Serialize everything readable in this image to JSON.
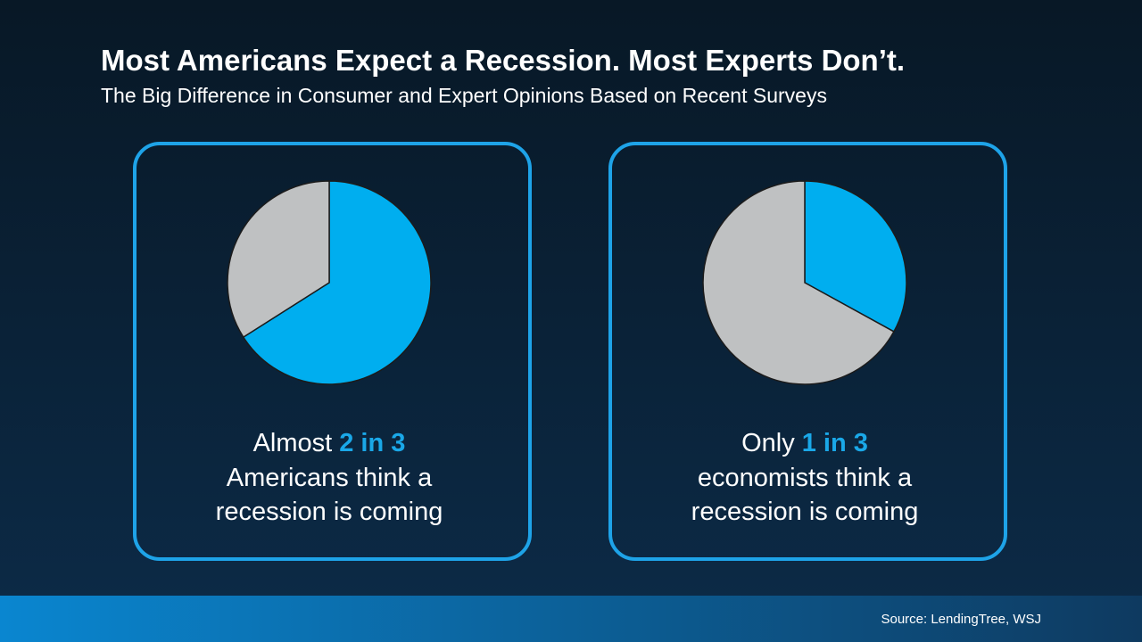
{
  "title": "Most Americans Expect a Recession. Most Experts Don’t.",
  "subtitle": "The Big Difference in Consumer and Expert Opinions Based on Recent Surveys",
  "chart_data": [
    {
      "type": "pie",
      "values": [
        66,
        34
      ],
      "colors": [
        "#00aeef",
        "#bfc1c2"
      ],
      "caption": {
        "lead": "Almost",
        "highlight": "2 in 3",
        "lines": [
          "Americans think a",
          "recession is coming"
        ]
      }
    },
    {
      "type": "pie",
      "values": [
        33,
        67
      ],
      "colors": [
        "#00aeef",
        "#bfc1c2"
      ],
      "caption": {
        "lead": "Only",
        "highlight": "1 in 3",
        "lines": [
          "economists think a",
          "recession is coming"
        ]
      }
    }
  ],
  "source": "Source: LendingTree, WSJ"
}
